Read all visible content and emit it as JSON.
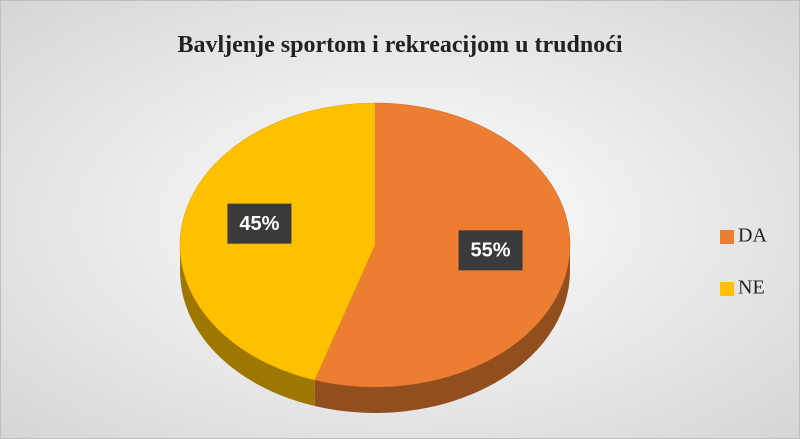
{
  "chart_data": {
    "type": "pie",
    "title": "Bavljenje sportom i rekreacijom u trudnoći",
    "categories": [
      "DA",
      "NE"
    ],
    "values": [
      55,
      45
    ],
    "value_labels": [
      "55%",
      "45%"
    ],
    "colors": [
      "#ED7D31",
      "#FFC000"
    ],
    "legend": "right"
  }
}
